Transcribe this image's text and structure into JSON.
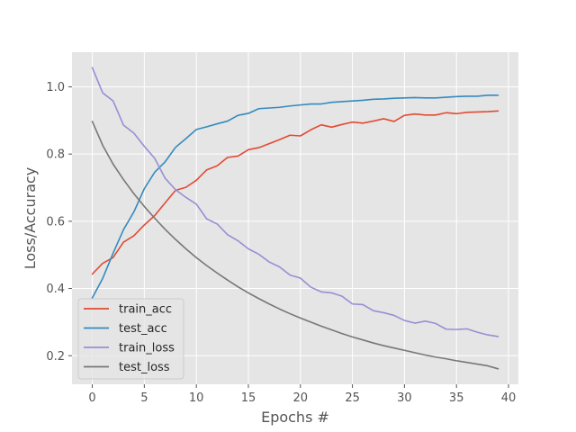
{
  "chart_data": {
    "type": "line",
    "title": "",
    "xlabel": "Epochs #",
    "ylabel": "Loss/Accuracy",
    "xlim": [
      -1.95,
      40.95
    ],
    "ylim": [
      0.115,
      1.103
    ],
    "xticks": [
      0,
      5,
      10,
      15,
      20,
      25,
      30,
      35,
      40
    ],
    "xtick_labels": [
      "0",
      "5",
      "10",
      "15",
      "20",
      "25",
      "30",
      "35",
      "40"
    ],
    "yticks": [
      0.2,
      0.4,
      0.6,
      0.8,
      1.0
    ],
    "ytick_labels": [
      "0.2",
      "0.4",
      "0.6",
      "0.8",
      "1.0"
    ],
    "grid": true,
    "legend_position": "lower-left",
    "x": [
      0,
      1,
      2,
      3,
      4,
      5,
      6,
      7,
      8,
      9,
      10,
      11,
      12,
      13,
      14,
      15,
      16,
      17,
      18,
      19,
      20,
      21,
      22,
      23,
      24,
      25,
      26,
      27,
      28,
      29,
      30,
      31,
      32,
      33,
      34,
      35,
      36,
      37,
      38,
      39
    ],
    "series": [
      {
        "name": "train_acc",
        "color": "#E24A33",
        "values": [
          0.443,
          0.475,
          0.492,
          0.538,
          0.557,
          0.589,
          0.617,
          0.655,
          0.692,
          0.701,
          0.722,
          0.753,
          0.765,
          0.79,
          0.794,
          0.813,
          0.819,
          0.831,
          0.843,
          0.856,
          0.854,
          0.872,
          0.887,
          0.88,
          0.888,
          0.895,
          0.892,
          0.898,
          0.905,
          0.897,
          0.915,
          0.919,
          0.916,
          0.916,
          0.923,
          0.92,
          0.924,
          0.925,
          0.926,
          0.928
        ]
      },
      {
        "name": "test_acc",
        "color": "#348ABD",
        "values": [
          0.372,
          0.43,
          0.505,
          0.575,
          0.628,
          0.697,
          0.746,
          0.777,
          0.82,
          0.846,
          0.873,
          0.881,
          0.89,
          0.898,
          0.915,
          0.921,
          0.935,
          0.937,
          0.939,
          0.943,
          0.946,
          0.949,
          0.949,
          0.954,
          0.956,
          0.958,
          0.96,
          0.963,
          0.964,
          0.966,
          0.967,
          0.968,
          0.967,
          0.967,
          0.969,
          0.971,
          0.972,
          0.972,
          0.975,
          0.975
        ]
      },
      {
        "name": "train_loss",
        "color": "#988ED5",
        "values": [
          1.057,
          0.982,
          0.958,
          0.886,
          0.862,
          0.823,
          0.787,
          0.728,
          0.694,
          0.671,
          0.651,
          0.607,
          0.592,
          0.56,
          0.542,
          0.518,
          0.502,
          0.479,
          0.464,
          0.44,
          0.431,
          0.404,
          0.39,
          0.387,
          0.377,
          0.354,
          0.352,
          0.334,
          0.328,
          0.32,
          0.305,
          0.297,
          0.303,
          0.296,
          0.279,
          0.278,
          0.28,
          0.27,
          0.262,
          0.257
        ]
      },
      {
        "name": "test_loss",
        "color": "#777777",
        "values": [
          0.897,
          0.826,
          0.77,
          0.724,
          0.682,
          0.644,
          0.609,
          0.576,
          0.546,
          0.518,
          0.492,
          0.468,
          0.446,
          0.425,
          0.405,
          0.387,
          0.37,
          0.354,
          0.339,
          0.325,
          0.312,
          0.3,
          0.288,
          0.277,
          0.266,
          0.256,
          0.247,
          0.238,
          0.23,
          0.223,
          0.216,
          0.209,
          0.202,
          0.196,
          0.191,
          0.185,
          0.18,
          0.175,
          0.17,
          0.161
        ]
      }
    ]
  }
}
